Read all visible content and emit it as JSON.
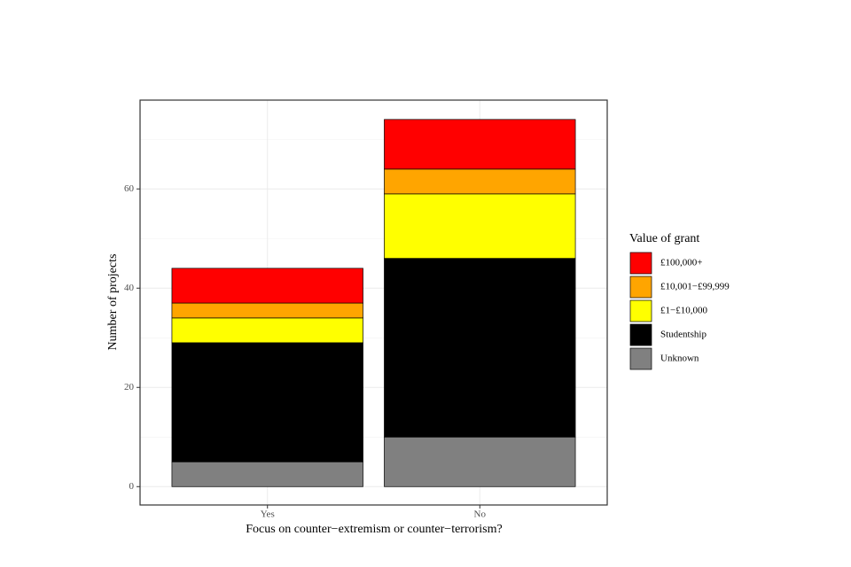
{
  "chart_data": {
    "type": "stacked_bar",
    "x_label": "Focus on counter−extremism or counter−terrorism?",
    "y_label": "Number of projects",
    "legend_title": "Value of grant",
    "categories": [
      "Yes",
      "No"
    ],
    "series": [
      {
        "name": "£100,000+",
        "color": "#ff0000",
        "values": [
          7,
          10
        ]
      },
      {
        "name": "£10,001−£99,999",
        "color": "#ffa500",
        "values": [
          3,
          5
        ]
      },
      {
        "name": "£1−£10,000",
        "color": "#ffff00",
        "values": [
          5,
          13
        ]
      },
      {
        "name": "Studentship",
        "color": "#000000",
        "values": [
          24,
          36
        ]
      },
      {
        "name": "Unknown",
        "color": "#808080",
        "values": [
          5,
          10
        ]
      }
    ],
    "ylim": [
      -3.7,
      77.9
    ],
    "yticks": [
      0,
      20,
      40,
      60
    ],
    "grid": true,
    "legend": "right"
  }
}
